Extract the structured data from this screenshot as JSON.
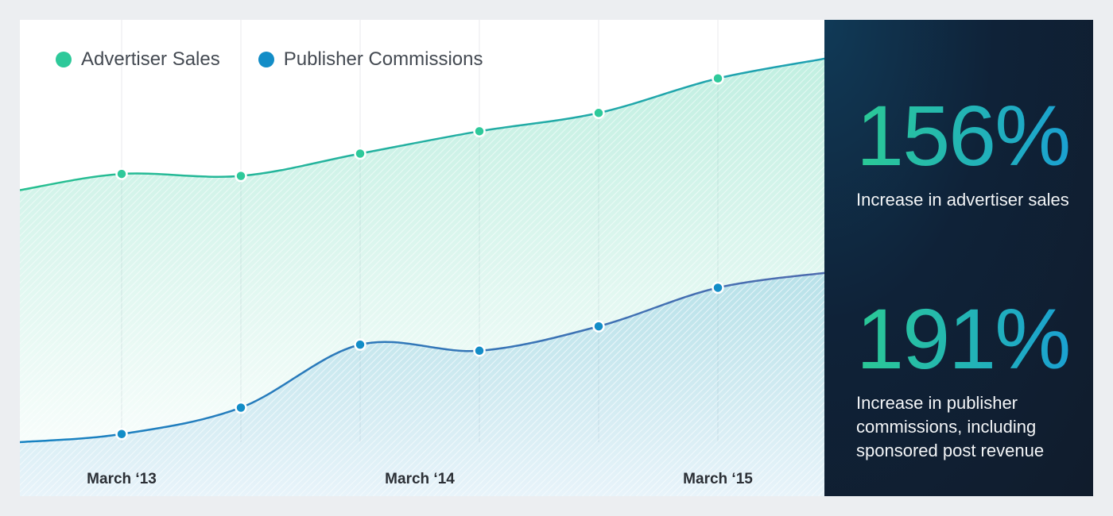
{
  "chart_data": {
    "type": "area",
    "x": [
      1,
      2,
      3,
      4,
      5,
      6,
      7
    ],
    "x_ticks": [
      {
        "at": 1,
        "label": "March ‘13"
      },
      {
        "at": 3.5,
        "label": "March ‘14"
      },
      {
        "at": 6,
        "label": "March ‘15"
      }
    ],
    "ylim": [
      0,
      100
    ],
    "grid": "vertical",
    "legend": "top-left",
    "series": [
      {
        "name": "Advertiser Sales",
        "color": "#2ec99a",
        "line_gradient": [
          "#27bf90",
          "#1e9fb3"
        ],
        "values": [
          66,
          65.5,
          71,
          76.5,
          81,
          89.5,
          95
        ],
        "edge_values": [
          62,
          96
        ]
      },
      {
        "name": "Publisher Commissions",
        "color": "#138dc7",
        "line_gradient": [
          "#1683c2",
          "#4f6aae"
        ],
        "values": [
          2,
          8.5,
          24,
          22.5,
          28.5,
          38,
          42
        ],
        "edge_values": [
          0,
          42
        ]
      }
    ]
  },
  "panel": {
    "stat1": {
      "value": "156%",
      "desc": "Increase in advertiser sales"
    },
    "stat2": {
      "value": "191%",
      "desc": "Increase in publisher commissions, including sponsored post revenue"
    }
  }
}
